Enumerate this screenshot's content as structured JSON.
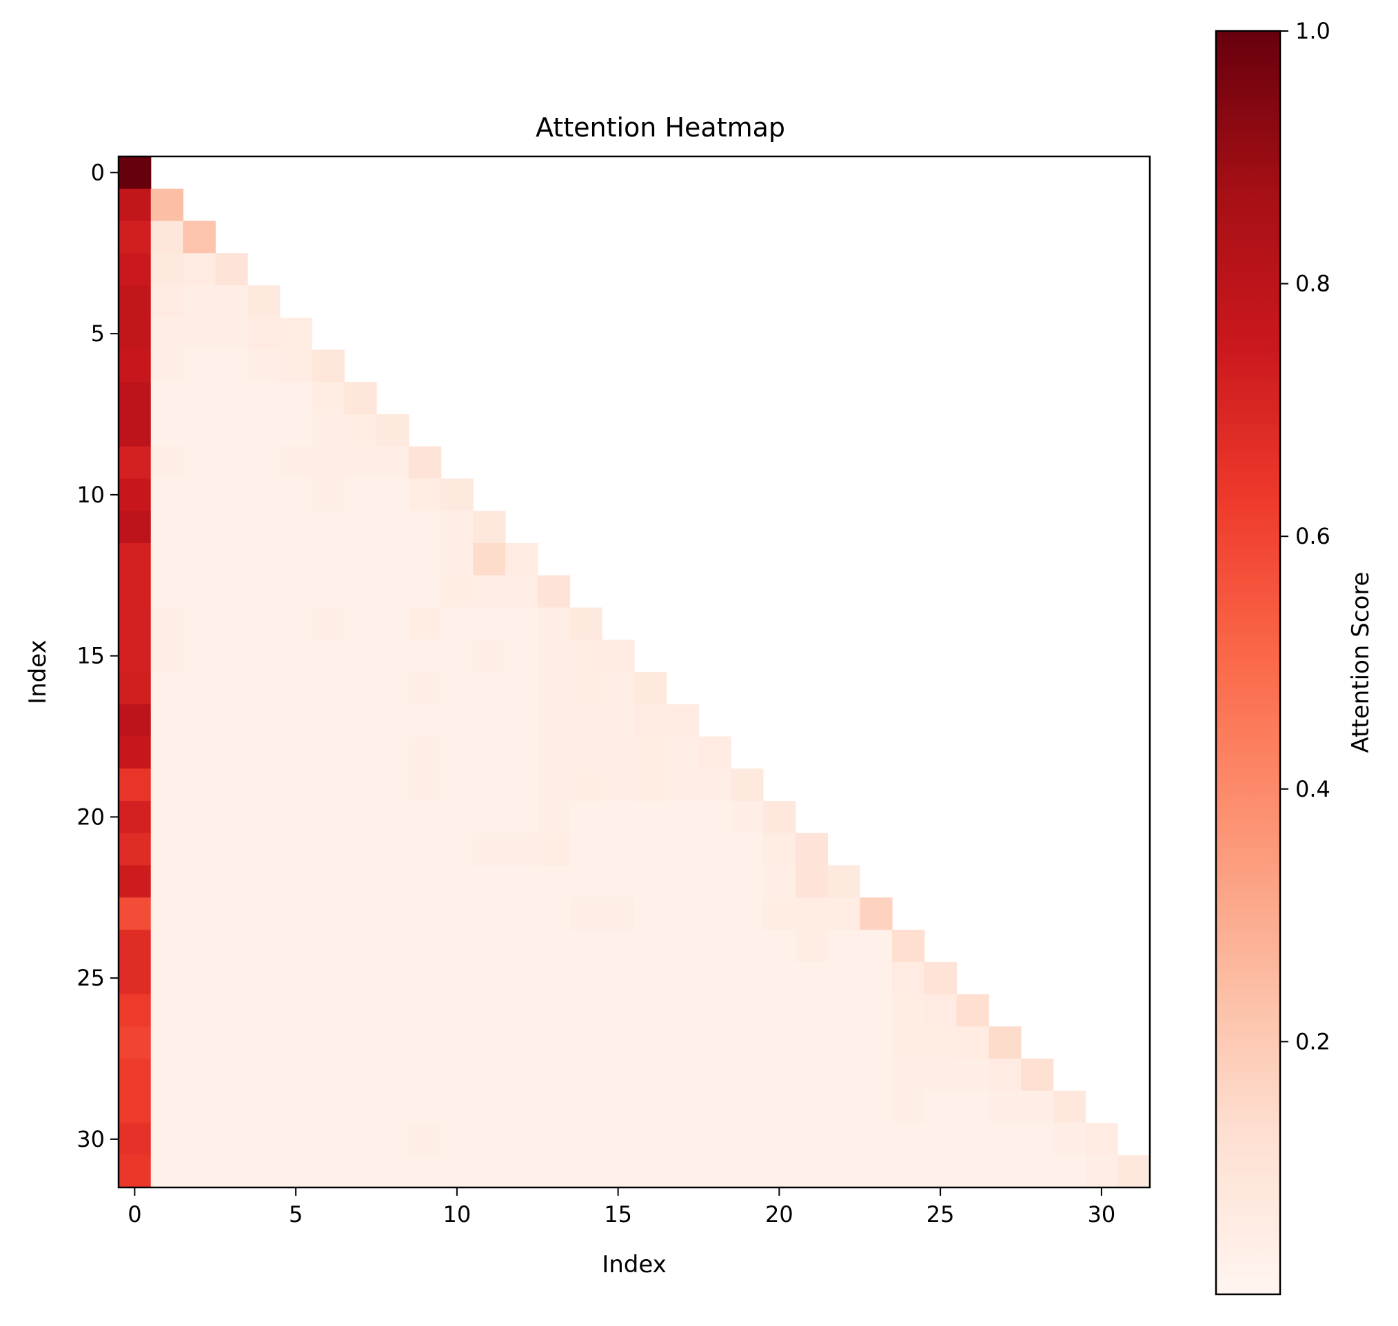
{
  "chart_data": {
    "type": "heatmap",
    "title": "Attention Heatmap",
    "xlabel": "Index",
    "ylabel": "Index",
    "colorbar_label": "Attention Score",
    "colormap": "Reds",
    "mask": "lower-triangular (causal), cells above diagonal are empty",
    "rows": 32,
    "cols": 32,
    "x_ticks": [
      0,
      5,
      10,
      15,
      20,
      25,
      30
    ],
    "y_ticks": [
      0,
      5,
      10,
      15,
      20,
      25,
      30
    ],
    "colorbar_ticks": [
      "1.0",
      "0.8",
      "0.6",
      "0.4",
      "0.2"
    ],
    "colorbar_range": [
      0.0,
      1.0
    ],
    "matrix": [
      [
        1.0
      ],
      [
        0.78,
        0.24
      ],
      [
        0.73,
        0.09,
        0.22
      ],
      [
        0.75,
        0.07,
        0.06,
        0.1
      ],
      [
        0.78,
        0.06,
        0.04,
        0.04,
        0.07
      ],
      [
        0.78,
        0.04,
        0.04,
        0.04,
        0.06,
        0.05
      ],
      [
        0.76,
        0.04,
        0.03,
        0.03,
        0.04,
        0.05,
        0.09
      ],
      [
        0.8,
        0.03,
        0.03,
        0.03,
        0.03,
        0.03,
        0.05,
        0.09
      ],
      [
        0.8,
        0.03,
        0.03,
        0.03,
        0.03,
        0.03,
        0.04,
        0.05,
        0.07
      ],
      [
        0.72,
        0.04,
        0.03,
        0.03,
        0.03,
        0.04,
        0.04,
        0.04,
        0.04,
        0.1
      ],
      [
        0.76,
        0.03,
        0.03,
        0.03,
        0.03,
        0.03,
        0.04,
        0.03,
        0.03,
        0.05,
        0.07
      ],
      [
        0.8,
        0.03,
        0.03,
        0.03,
        0.03,
        0.03,
        0.03,
        0.03,
        0.03,
        0.03,
        0.04,
        0.08
      ],
      [
        0.72,
        0.03,
        0.03,
        0.03,
        0.03,
        0.03,
        0.03,
        0.03,
        0.03,
        0.03,
        0.04,
        0.14,
        0.06
      ],
      [
        0.72,
        0.03,
        0.03,
        0.03,
        0.03,
        0.03,
        0.03,
        0.03,
        0.03,
        0.03,
        0.05,
        0.04,
        0.04,
        0.1
      ],
      [
        0.72,
        0.04,
        0.03,
        0.03,
        0.03,
        0.03,
        0.04,
        0.03,
        0.03,
        0.05,
        0.03,
        0.03,
        0.03,
        0.04,
        0.07
      ],
      [
        0.72,
        0.04,
        0.03,
        0.03,
        0.03,
        0.03,
        0.03,
        0.03,
        0.03,
        0.03,
        0.03,
        0.04,
        0.03,
        0.04,
        0.05,
        0.06
      ],
      [
        0.73,
        0.03,
        0.03,
        0.03,
        0.03,
        0.03,
        0.03,
        0.03,
        0.03,
        0.04,
        0.03,
        0.03,
        0.03,
        0.04,
        0.05,
        0.04,
        0.07
      ],
      [
        0.8,
        0.03,
        0.03,
        0.03,
        0.03,
        0.03,
        0.03,
        0.03,
        0.03,
        0.03,
        0.03,
        0.03,
        0.03,
        0.04,
        0.04,
        0.04,
        0.06,
        0.06
      ],
      [
        0.76,
        0.03,
        0.03,
        0.03,
        0.03,
        0.03,
        0.03,
        0.03,
        0.03,
        0.04,
        0.03,
        0.03,
        0.03,
        0.04,
        0.04,
        0.04,
        0.05,
        0.04,
        0.06
      ],
      [
        0.65,
        0.03,
        0.03,
        0.03,
        0.03,
        0.03,
        0.03,
        0.03,
        0.03,
        0.04,
        0.03,
        0.03,
        0.03,
        0.04,
        0.05,
        0.04,
        0.05,
        0.04,
        0.04,
        0.07
      ],
      [
        0.72,
        0.03,
        0.03,
        0.03,
        0.03,
        0.03,
        0.03,
        0.03,
        0.03,
        0.03,
        0.03,
        0.03,
        0.03,
        0.04,
        0.03,
        0.03,
        0.03,
        0.03,
        0.03,
        0.04,
        0.08
      ],
      [
        0.68,
        0.03,
        0.03,
        0.03,
        0.03,
        0.03,
        0.03,
        0.03,
        0.03,
        0.03,
        0.03,
        0.04,
        0.04,
        0.05,
        0.03,
        0.03,
        0.03,
        0.03,
        0.03,
        0.03,
        0.05,
        0.1
      ],
      [
        0.74,
        0.03,
        0.03,
        0.03,
        0.03,
        0.03,
        0.03,
        0.03,
        0.03,
        0.03,
        0.03,
        0.03,
        0.03,
        0.03,
        0.03,
        0.03,
        0.03,
        0.03,
        0.03,
        0.03,
        0.04,
        0.1,
        0.07
      ],
      [
        0.58,
        0.03,
        0.03,
        0.03,
        0.03,
        0.03,
        0.03,
        0.03,
        0.03,
        0.03,
        0.03,
        0.03,
        0.03,
        0.03,
        0.04,
        0.04,
        0.03,
        0.03,
        0.03,
        0.03,
        0.05,
        0.05,
        0.05,
        0.17
      ],
      [
        0.68,
        0.03,
        0.03,
        0.03,
        0.03,
        0.03,
        0.03,
        0.03,
        0.03,
        0.03,
        0.03,
        0.03,
        0.03,
        0.03,
        0.03,
        0.03,
        0.03,
        0.03,
        0.03,
        0.03,
        0.03,
        0.05,
        0.03,
        0.03,
        0.13
      ],
      [
        0.68,
        0.03,
        0.03,
        0.03,
        0.03,
        0.03,
        0.03,
        0.03,
        0.03,
        0.03,
        0.03,
        0.03,
        0.03,
        0.03,
        0.03,
        0.03,
        0.03,
        0.03,
        0.03,
        0.03,
        0.03,
        0.03,
        0.03,
        0.03,
        0.06,
        0.11
      ],
      [
        0.63,
        0.03,
        0.03,
        0.03,
        0.03,
        0.03,
        0.03,
        0.03,
        0.03,
        0.03,
        0.03,
        0.03,
        0.03,
        0.03,
        0.03,
        0.03,
        0.03,
        0.03,
        0.03,
        0.03,
        0.03,
        0.03,
        0.03,
        0.03,
        0.05,
        0.06,
        0.13
      ],
      [
        0.6,
        0.03,
        0.03,
        0.03,
        0.03,
        0.03,
        0.03,
        0.03,
        0.03,
        0.03,
        0.03,
        0.03,
        0.03,
        0.03,
        0.03,
        0.03,
        0.03,
        0.03,
        0.03,
        0.03,
        0.03,
        0.03,
        0.03,
        0.03,
        0.05,
        0.05,
        0.06,
        0.14
      ],
      [
        0.63,
        0.03,
        0.03,
        0.03,
        0.03,
        0.03,
        0.03,
        0.03,
        0.03,
        0.03,
        0.03,
        0.03,
        0.03,
        0.03,
        0.03,
        0.03,
        0.03,
        0.03,
        0.03,
        0.03,
        0.03,
        0.03,
        0.03,
        0.03,
        0.04,
        0.04,
        0.04,
        0.06,
        0.12
      ],
      [
        0.63,
        0.03,
        0.03,
        0.03,
        0.03,
        0.03,
        0.03,
        0.03,
        0.03,
        0.03,
        0.03,
        0.03,
        0.03,
        0.03,
        0.03,
        0.03,
        0.03,
        0.03,
        0.03,
        0.03,
        0.03,
        0.03,
        0.03,
        0.03,
        0.04,
        0.03,
        0.03,
        0.04,
        0.04,
        0.08
      ],
      [
        0.66,
        0.03,
        0.03,
        0.03,
        0.03,
        0.03,
        0.03,
        0.03,
        0.03,
        0.04,
        0.03,
        0.03,
        0.03,
        0.03,
        0.03,
        0.03,
        0.03,
        0.03,
        0.03,
        0.03,
        0.03,
        0.03,
        0.03,
        0.03,
        0.03,
        0.03,
        0.03,
        0.03,
        0.03,
        0.04,
        0.06
      ],
      [
        0.64,
        0.03,
        0.03,
        0.03,
        0.03,
        0.03,
        0.03,
        0.03,
        0.03,
        0.03,
        0.03,
        0.03,
        0.03,
        0.03,
        0.03,
        0.03,
        0.03,
        0.03,
        0.03,
        0.03,
        0.03,
        0.03,
        0.03,
        0.03,
        0.03,
        0.03,
        0.03,
        0.03,
        0.03,
        0.03,
        0.04,
        0.08
      ]
    ]
  }
}
